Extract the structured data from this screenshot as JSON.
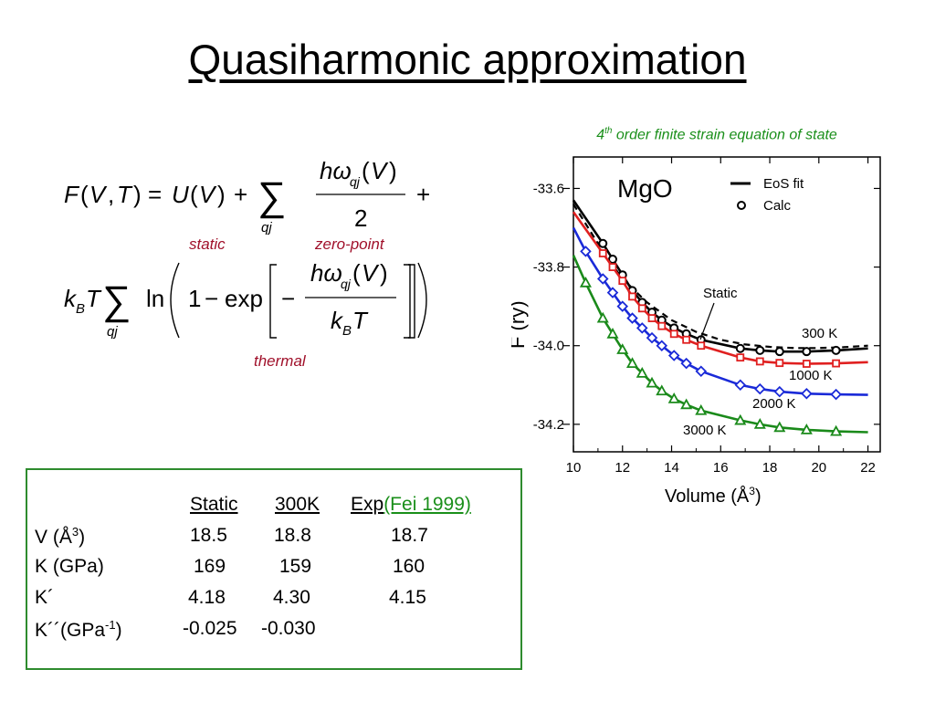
{
  "slide": {
    "title": "Quasiharmonic approximation"
  },
  "equation": {
    "labels": {
      "static": "static",
      "zero_point": "zero-point",
      "thermal": "thermal"
    }
  },
  "figure": {
    "caption_order": "4",
    "caption_sup": "th",
    "caption_rest": " order finite strain equation of state"
  },
  "table": {
    "headers": {
      "static": "Static",
      "t300": "300K",
      "exp": "Exp",
      "exp_ref": "(Fei 1999)"
    },
    "rows": [
      {
        "label": "V (Å",
        "label_sup": "3",
        "label_end": ")",
        "static": "18.5",
        "t300": "18.8",
        "exp": "18.7"
      },
      {
        "label": "K (GPa)",
        "label_sup": "",
        "label_end": "",
        "static": "169",
        "t300": "159",
        "exp": "160"
      },
      {
        "label": "K´",
        "label_sup": "",
        "label_end": "",
        "static": "4.18",
        "t300": "4.30",
        "exp": "4.15"
      },
      {
        "label": "K´´(GPa",
        "label_sup": "-1",
        "label_end": ")",
        "static": "-0.025",
        "t300": "-0.030",
        "exp": ""
      }
    ]
  },
  "chart_data": {
    "type": "line",
    "title": "MgO",
    "xlabel": "Volume (Å3)",
    "ylabel": "F (ry)",
    "xlim": [
      10,
      22.5
    ],
    "ylim": [
      -34.27,
      -33.52
    ],
    "x_ticks": [
      10,
      12,
      14,
      16,
      18,
      20,
      22
    ],
    "y_ticks": [
      -33.6,
      -33.8,
      -34.0,
      -34.2
    ],
    "x_tick_labels": [
      "10",
      "12",
      "14",
      "16",
      "18",
      "20",
      "22"
    ],
    "y_tick_labels": [
      "-33.6",
      "-33.8",
      "-34.0",
      "-34.2"
    ],
    "legend": {
      "position": "top-right",
      "entries": [
        "EoS fit",
        "Calc"
      ]
    },
    "series": [
      {
        "name": "Static",
        "color": "#000000",
        "style": "dashed",
        "marker": "none",
        "x": [
          10.0,
          11.2,
          12.0,
          13.0,
          14.0,
          15.0,
          16.0,
          17.0,
          18.0,
          19.0,
          20.0,
          21.0,
          22.0
        ],
        "y": [
          -33.64,
          -33.76,
          -33.83,
          -33.89,
          -33.935,
          -33.965,
          -33.985,
          -33.997,
          -34.003,
          -34.006,
          -34.006,
          -34.004,
          -34.0
        ]
      },
      {
        "name": "300 K",
        "color": "#000000",
        "style": "solid",
        "marker": "circle",
        "x": [
          10.0,
          11.2,
          11.6,
          12.0,
          12.4,
          12.8,
          13.2,
          13.6,
          14.1,
          14.6,
          15.2,
          16.8,
          17.6,
          18.4,
          19.5,
          20.7,
          22.0
        ],
        "y": [
          -33.63,
          -33.74,
          -33.78,
          -33.82,
          -33.86,
          -33.89,
          -33.915,
          -33.935,
          -33.955,
          -33.97,
          -33.985,
          -34.007,
          -34.012,
          -34.015,
          -34.015,
          -34.012,
          -34.007
        ],
        "markers_x": [
          11.2,
          11.6,
          12.0,
          12.4,
          12.8,
          13.2,
          13.6,
          14.1,
          14.6,
          15.2,
          16.8,
          17.6,
          18.4,
          19.5,
          20.7
        ],
        "markers_y": [
          -33.74,
          -33.78,
          -33.82,
          -33.86,
          -33.89,
          -33.915,
          -33.935,
          -33.955,
          -33.97,
          -33.985,
          -34.007,
          -34.012,
          -34.015,
          -34.015,
          -34.012
        ]
      },
      {
        "name": "1000 K",
        "color": "#e02020",
        "style": "solid",
        "marker": "square",
        "x": [
          10.0,
          11.2,
          11.6,
          12.0,
          12.4,
          12.8,
          13.2,
          13.6,
          14.1,
          14.6,
          15.2,
          16.8,
          17.6,
          18.4,
          19.5,
          20.7,
          22.0
        ],
        "y": [
          -33.66,
          -33.765,
          -33.8,
          -33.835,
          -33.875,
          -33.905,
          -33.93,
          -33.95,
          -33.97,
          -33.985,
          -34.0,
          -34.03,
          -34.04,
          -34.044,
          -34.046,
          -34.045,
          -34.042
        ],
        "markers_x": [
          11.2,
          11.6,
          12.0,
          12.4,
          12.8,
          13.2,
          13.6,
          14.1,
          14.6,
          15.2,
          16.8,
          17.6,
          18.4,
          19.5,
          20.7
        ],
        "markers_y": [
          -33.765,
          -33.8,
          -33.835,
          -33.875,
          -33.905,
          -33.93,
          -33.95,
          -33.97,
          -33.985,
          -34.0,
          -34.03,
          -34.04,
          -34.044,
          -34.046,
          -34.045
        ]
      },
      {
        "name": "2000 K",
        "color": "#1a2ad8",
        "style": "solid",
        "marker": "diamond",
        "x": [
          10.0,
          10.5,
          11.2,
          11.6,
          12.0,
          12.4,
          12.8,
          13.2,
          13.6,
          14.1,
          14.6,
          15.2,
          16.8,
          17.6,
          18.4,
          19.5,
          20.7,
          22.0
        ],
        "y": [
          -33.7,
          -33.76,
          -33.83,
          -33.865,
          -33.9,
          -33.93,
          -33.955,
          -33.98,
          -34.0,
          -34.025,
          -34.045,
          -34.065,
          -34.1,
          -34.11,
          -34.117,
          -34.122,
          -34.124,
          -34.125
        ],
        "markers_x": [
          10.5,
          11.2,
          11.6,
          12.0,
          12.4,
          12.8,
          13.2,
          13.6,
          14.1,
          14.6,
          15.2,
          16.8,
          17.6,
          18.4,
          19.5,
          20.7
        ],
        "markers_y": [
          -33.76,
          -33.83,
          -33.865,
          -33.9,
          -33.93,
          -33.955,
          -33.98,
          -34.0,
          -34.025,
          -34.045,
          -34.065,
          -34.1,
          -34.11,
          -34.117,
          -34.122,
          -34.124
        ]
      },
      {
        "name": "3000 K",
        "color": "#1a8a1a",
        "style": "solid",
        "marker": "triangle",
        "x": [
          10.0,
          10.5,
          11.2,
          11.6,
          12.0,
          12.4,
          12.8,
          13.2,
          13.6,
          14.1,
          14.6,
          15.2,
          16.8,
          17.6,
          18.4,
          19.5,
          20.7,
          22.0
        ],
        "y": [
          -33.77,
          -33.84,
          -33.93,
          -33.97,
          -34.01,
          -34.045,
          -34.07,
          -34.095,
          -34.115,
          -34.135,
          -34.15,
          -34.165,
          -34.19,
          -34.2,
          -34.208,
          -34.214,
          -34.218,
          -34.22
        ],
        "markers_x": [
          10.5,
          11.2,
          11.6,
          12.0,
          12.4,
          12.8,
          13.2,
          13.6,
          14.1,
          14.6,
          15.2,
          16.8,
          17.6,
          18.4,
          19.5,
          20.7
        ],
        "markers_y": [
          -33.84,
          -33.93,
          -33.97,
          -34.01,
          -34.045,
          -34.07,
          -34.095,
          -34.115,
          -34.135,
          -34.15,
          -34.165,
          -34.19,
          -34.2,
          -34.208,
          -34.214,
          -34.218
        ]
      }
    ],
    "annotations": [
      "Static",
      "300 K",
      "1000 K",
      "2000 K",
      "3000 K"
    ]
  }
}
